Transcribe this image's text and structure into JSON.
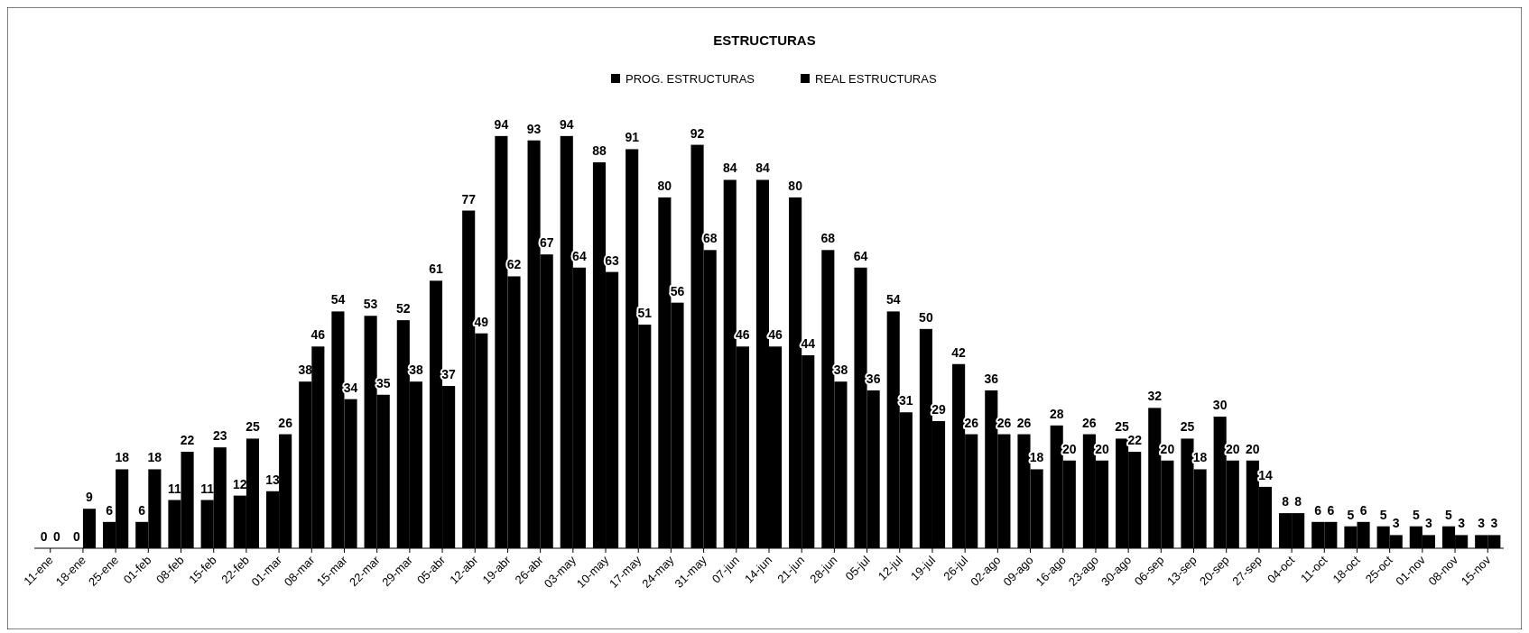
{
  "chart_data": {
    "type": "bar",
    "title": "ESTRUCTURAS",
    "categories": [
      "11-ene",
      "18-ene",
      "25-ene",
      "01-feb",
      "08-feb",
      "15-feb",
      "22-feb",
      "01-mar",
      "08-mar",
      "15-mar",
      "22-mar",
      "29-mar",
      "05-abr",
      "12-abr",
      "19-abr",
      "26-abr",
      "03-may",
      "10-may",
      "17-may",
      "24-may",
      "31-may",
      "07-jun",
      "14-jun",
      "21-jun",
      "28-jun",
      "05-jul",
      "12-jul",
      "19-jul",
      "26-jul",
      "02-ago",
      "09-ago",
      "16-ago",
      "23-ago",
      "30-ago",
      "06-sep",
      "13-sep",
      "20-sep",
      "27-sep",
      "04-oct",
      "11-oct",
      "18-oct",
      "25-oct",
      "01-nov",
      "08-nov",
      "15-nov"
    ],
    "series": [
      {
        "name": "PROG. ESTRUCTURAS",
        "color": "#000000",
        "values": [
          0,
          0,
          6,
          6,
          11,
          11,
          12,
          13,
          38,
          54,
          53,
          52,
          61,
          77,
          94,
          93,
          94,
          88,
          91,
          80,
          92,
          84,
          84,
          80,
          68,
          64,
          54,
          50,
          42,
          36,
          26,
          28,
          26,
          25,
          32,
          25,
          30,
          20,
          8,
          6,
          5,
          5,
          5,
          5,
          3
        ]
      },
      {
        "name": "REAL ESTRUCTURAS",
        "color": "#000000",
        "values": [
          0,
          9,
          18,
          18,
          22,
          23,
          25,
          26,
          46,
          34,
          35,
          38,
          37,
          49,
          62,
          67,
          64,
          63,
          51,
          56,
          68,
          46,
          46,
          44,
          38,
          36,
          31,
          29,
          26,
          26,
          18,
          20,
          20,
          22,
          20,
          18,
          20,
          14,
          8,
          6,
          6,
          3,
          3,
          3,
          3
        ]
      }
    ],
    "data_labels": true,
    "legend": "top",
    "grid": false
  }
}
